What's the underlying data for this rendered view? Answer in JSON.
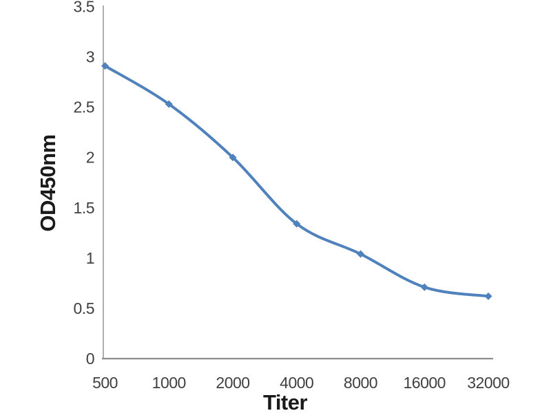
{
  "page": {
    "background": "#ffffff"
  },
  "chart_data": {
    "type": "line",
    "title": "",
    "categories": [
      "500",
      "1000",
      "2000",
      "4000",
      "8000",
      "16000",
      "32000"
    ],
    "series": [
      {
        "name": "OD450nm",
        "values": [
          2.91,
          2.53,
          2.0,
          1.34,
          1.04,
          0.71,
          0.62
        ]
      }
    ],
    "xlabel": "Titer",
    "ylabel": "OD450nm",
    "ylim": [
      0,
      3.5
    ],
    "yticks": [
      "0",
      "0.5",
      "1",
      "1.5",
      "2",
      "2.5",
      "3",
      "3.5"
    ],
    "grid": false,
    "legend": "none",
    "marker": "diamond",
    "smooth": true,
    "x_spacing": "categorical-even",
    "colors": {
      "line": "#4F81BD",
      "marker": "#4F81BD",
      "axis": "#8C8C8C",
      "tick_labels": "#404040",
      "axis_titles": "#1A1A1A"
    }
  }
}
